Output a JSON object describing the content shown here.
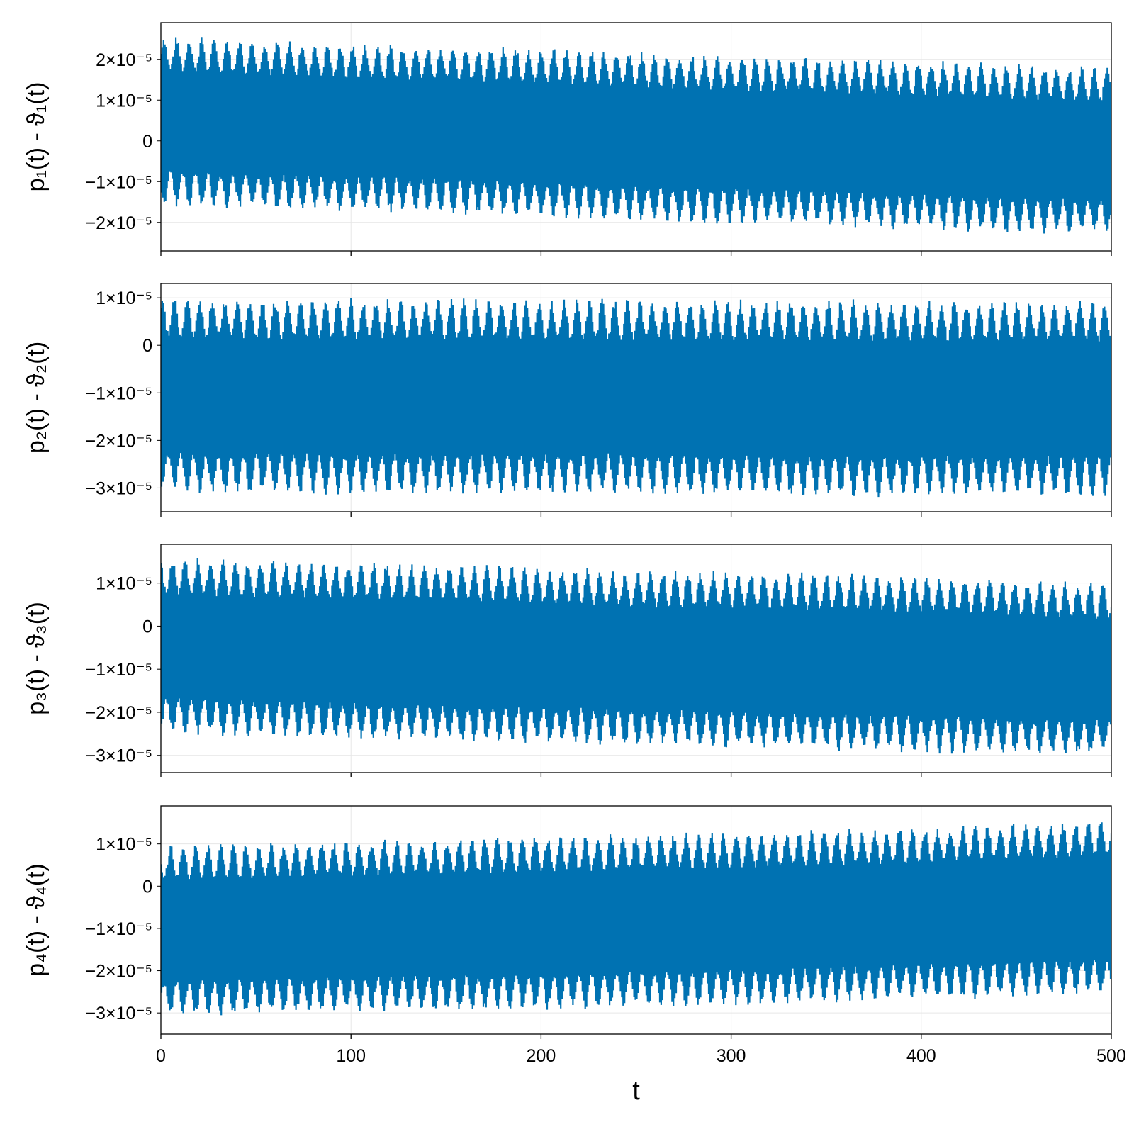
{
  "colors": {
    "series": "#0072b2",
    "grid": "#e6e6e6",
    "frame": "#000000"
  },
  "chart_data": [
    {
      "type": "line",
      "ylabel": "p₁(t) - ϑ₁(t)",
      "xlim": [
        0,
        500
      ],
      "ylim": [
        -2.7e-05,
        2.9e-05
      ],
      "yticks": [
        {
          "value": 2e-05,
          "label": "2×10⁻⁵"
        },
        {
          "value": 1e-05,
          "label": "1×10⁻⁵"
        },
        {
          "value": 0,
          "label": "0"
        },
        {
          "value": -1e-05,
          "label": "−1×10⁻⁵"
        },
        {
          "value": -2e-05,
          "label": "−2×10⁻⁵"
        }
      ],
      "envelope": {
        "x": [
          0,
          50,
          100,
          150,
          200,
          250,
          300,
          350,
          400,
          450,
          500
        ],
        "upper": [
          2.6e-05,
          2.5e-05,
          2.4e-05,
          2.35e-05,
          2.3e-05,
          2.2e-05,
          2.1e-05,
          2.05e-05,
          2e-05,
          1.9e-05,
          1.8e-05
        ],
        "lower": [
          -1.6e-05,
          -1.7e-05,
          -1.75e-05,
          -1.8e-05,
          -1.9e-05,
          -2e-05,
          -2.05e-05,
          -2.1e-05,
          -2.2e-05,
          -2.3e-05,
          -2.3e-05
        ]
      },
      "grid": true
    },
    {
      "type": "line",
      "ylabel": "p₂(t) - ϑ₂(t)",
      "xlim": [
        0,
        500
      ],
      "ylim": [
        -3.5e-05,
        1.3e-05
      ],
      "yticks": [
        {
          "value": 1e-05,
          "label": "1×10⁻⁵"
        },
        {
          "value": 0,
          "label": "0"
        },
        {
          "value": -1e-05,
          "label": "−1×10⁻⁵"
        },
        {
          "value": -2e-05,
          "label": "−2×10⁻⁵"
        },
        {
          "value": -3e-05,
          "label": "−3×10⁻⁵"
        }
      ],
      "envelope": {
        "x": [
          0,
          50,
          100,
          150,
          200,
          250,
          300,
          350,
          400,
          450,
          500
        ],
        "upper": [
          1.05e-05,
          1e-05,
          1e-05,
          1e-05,
          9.8e-06,
          9.8e-06,
          9.7e-06,
          9.7e-06,
          9.6e-06,
          9.6e-06,
          9.5e-06
        ],
        "lower": [
          -3.1e-05,
          -3.15e-05,
          -3.15e-05,
          -3.15e-05,
          -3.15e-05,
          -3.15e-05,
          -3.2e-05,
          -3.2e-05,
          -3.2e-05,
          -3.2e-05,
          -3.2e-05
        ]
      },
      "grid": true
    },
    {
      "type": "line",
      "ylabel": "p₃(t) - ϑ₃(t)",
      "xlim": [
        0,
        500
      ],
      "ylim": [
        -3.4e-05,
        1.9e-05
      ],
      "yticks": [
        {
          "value": 1e-05,
          "label": "1×10⁻⁵"
        },
        {
          "value": 0,
          "label": "0"
        },
        {
          "value": -1e-05,
          "label": "−1×10⁻⁵"
        },
        {
          "value": -2e-05,
          "label": "−2×10⁻⁵"
        },
        {
          "value": -3e-05,
          "label": "−3×10⁻⁵"
        }
      ],
      "envelope": {
        "x": [
          0,
          50,
          100,
          150,
          200,
          250,
          300,
          350,
          400,
          450,
          500
        ],
        "upper": [
          1.6e-05,
          1.55e-05,
          1.5e-05,
          1.45e-05,
          1.4e-05,
          1.3e-05,
          1.3e-05,
          1.25e-05,
          1.2e-05,
          1.1e-05,
          1e-05
        ],
        "lower": [
          -2.5e-05,
          -2.6e-05,
          -2.65e-05,
          -2.7e-05,
          -2.75e-05,
          -2.8e-05,
          -2.85e-05,
          -2.9e-05,
          -2.95e-05,
          -3e-05,
          -3e-05
        ]
      },
      "grid": true
    },
    {
      "type": "line",
      "ylabel": "p₄(t) - ϑ₄(t)",
      "xlabel": "t",
      "xlim": [
        0,
        500
      ],
      "ylim": [
        -3.5e-05,
        1.9e-05
      ],
      "xticks": [
        {
          "value": 0,
          "label": "0"
        },
        {
          "value": 100,
          "label": "100"
        },
        {
          "value": 200,
          "label": "200"
        },
        {
          "value": 300,
          "label": "300"
        },
        {
          "value": 400,
          "label": "400"
        },
        {
          "value": 500,
          "label": "500"
        }
      ],
      "yticks": [
        {
          "value": 1e-05,
          "label": "1×10⁻⁵"
        },
        {
          "value": 0,
          "label": "0"
        },
        {
          "value": -1e-05,
          "label": "−1×10⁻⁵"
        },
        {
          "value": -2e-05,
          "label": "−2×10⁻⁵"
        },
        {
          "value": -3e-05,
          "label": "−3×10⁻⁵"
        }
      ],
      "envelope": {
        "x": [
          0,
          50,
          100,
          150,
          200,
          250,
          300,
          350,
          400,
          450,
          500
        ],
        "upper": [
          1e-05,
          1.05e-05,
          1.1e-05,
          1.15e-05,
          1.2e-05,
          1.25e-05,
          1.3e-05,
          1.35e-05,
          1.4e-05,
          1.5e-05,
          1.6e-05
        ],
        "lower": [
          -3.1e-05,
          -3.05e-05,
          -3e-05,
          -3e-05,
          -2.95e-05,
          -2.9e-05,
          -2.85e-05,
          -2.8e-05,
          -2.7e-05,
          -2.65e-05,
          -2.6e-05
        ]
      },
      "grid": true
    }
  ]
}
